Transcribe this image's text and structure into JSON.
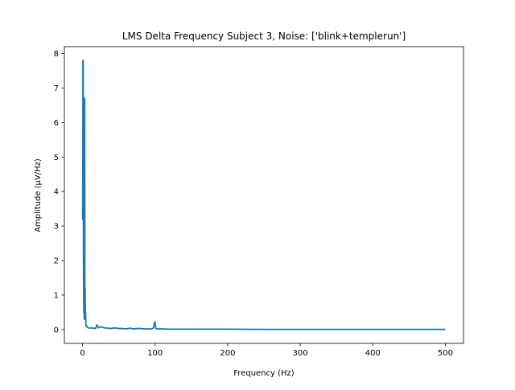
{
  "chart_data": {
    "type": "line",
    "title": "LMS Delta Frequency Subject 3, Noise: ['blink+templerun']",
    "xlabel": "Frequency (Hz)",
    "ylabel": "Amplitude (μV/Hz)",
    "xlim": [
      -25,
      525
    ],
    "ylim": [
      -0.4,
      8.2
    ],
    "x_ticks": [
      0,
      100,
      200,
      300,
      400,
      500
    ],
    "y_ticks": [
      0,
      1,
      2,
      3,
      4,
      5,
      6,
      7,
      8
    ],
    "grid": false,
    "legend": "none",
    "series": [
      {
        "color": "#1f77b4",
        "x": [
          0,
          0.3,
          0.6,
          0.9,
          1.0,
          1.2,
          1.5,
          1.8,
          2.0,
          2.2,
          2.5,
          2.8,
          3.0,
          3.3,
          3.6,
          4.0,
          4.3,
          4.6,
          5.0,
          5.5,
          6.0,
          7.0,
          8.0,
          10,
          12,
          15,
          18,
          20,
          22,
          25,
          30,
          35,
          40,
          45,
          50,
          55,
          60,
          65,
          70,
          75,
          80,
          85,
          90,
          95,
          98,
          99,
          100,
          101,
          102,
          105,
          110,
          120,
          130,
          140,
          150,
          160,
          180,
          200,
          250,
          300,
          350,
          400,
          450,
          500
        ],
        "y": [
          3.5,
          3.2,
          7.8,
          7.0,
          7.8,
          3.0,
          1.0,
          0.5,
          1.6,
          0.4,
          0.3,
          0.8,
          6.7,
          0.6,
          1.2,
          0.3,
          0.5,
          0.15,
          0.1,
          0.12,
          0.08,
          0.06,
          0.05,
          0.04,
          0.05,
          0.04,
          0.03,
          0.14,
          0.05,
          0.08,
          0.05,
          0.04,
          0.03,
          0.05,
          0.03,
          0.03,
          0.02,
          0.04,
          0.02,
          0.03,
          0.03,
          0.02,
          0.02,
          0.02,
          0.05,
          0.2,
          0.22,
          0.04,
          0.02,
          0.02,
          0.02,
          0.01,
          0.01,
          0.01,
          0.01,
          0.01,
          0.01,
          0.01,
          0.005,
          0.005,
          0.005,
          0.005,
          0.005,
          0.005
        ]
      }
    ]
  }
}
